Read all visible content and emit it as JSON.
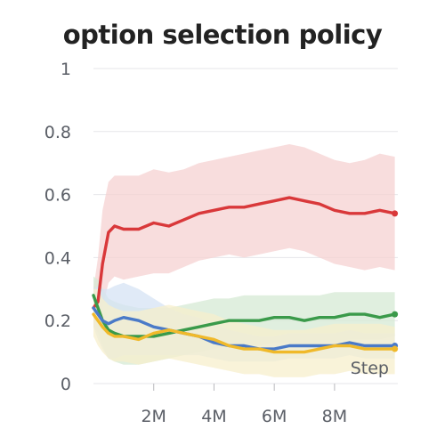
{
  "chart_data": {
    "type": "line",
    "title": "option selection policy",
    "xlabel": "Step",
    "ylabel": "",
    "xlim": [
      0,
      10100000
    ],
    "ylim": [
      0,
      1
    ],
    "x_ticks": [
      2000000,
      4000000,
      6000000,
      8000000
    ],
    "x_tick_labels": [
      "2M",
      "4M",
      "6M",
      "8M"
    ],
    "y_ticks": [
      0,
      0.2,
      0.4,
      0.6,
      0.8,
      1
    ],
    "y_tick_labels": [
      "0",
      "0.2",
      "0.4",
      "0.6",
      "0.8",
      "1"
    ],
    "grid": true,
    "legend": "none",
    "x": [
      0,
      150000,
      300000,
      500000,
      700000,
      1000000,
      1500000,
      2000000,
      2500000,
      3000000,
      3500000,
      4000000,
      4500000,
      5000000,
      5500000,
      6000000,
      6500000,
      7000000,
      7500000,
      8000000,
      8500000,
      9000000,
      9500000,
      10000000
    ],
    "series": [
      {
        "color": "#d9383a",
        "band_color": "#f6d2d2",
        "values": [
          0.24,
          0.26,
          0.38,
          0.48,
          0.5,
          0.49,
          0.49,
          0.51,
          0.5,
          0.52,
          0.54,
          0.55,
          0.56,
          0.56,
          0.57,
          0.58,
          0.59,
          0.58,
          0.57,
          0.55,
          0.54,
          0.54,
          0.55,
          0.54
        ],
        "band_upper": [
          0.3,
          0.4,
          0.55,
          0.64,
          0.66,
          0.66,
          0.66,
          0.68,
          0.67,
          0.68,
          0.7,
          0.71,
          0.72,
          0.73,
          0.74,
          0.75,
          0.76,
          0.75,
          0.73,
          0.71,
          0.7,
          0.71,
          0.73,
          0.72
        ],
        "band_lower": [
          0.18,
          0.16,
          0.24,
          0.32,
          0.34,
          0.33,
          0.34,
          0.35,
          0.35,
          0.37,
          0.39,
          0.4,
          0.41,
          0.4,
          0.41,
          0.42,
          0.43,
          0.42,
          0.4,
          0.38,
          0.37,
          0.36,
          0.37,
          0.36
        ]
      },
      {
        "color": "#3a9a4a",
        "band_color": "#d6ead4",
        "values": [
          0.28,
          0.24,
          0.2,
          0.17,
          0.16,
          0.15,
          0.15,
          0.15,
          0.16,
          0.17,
          0.18,
          0.19,
          0.2,
          0.2,
          0.2,
          0.21,
          0.21,
          0.2,
          0.21,
          0.21,
          0.22,
          0.22,
          0.21,
          0.22
        ],
        "band_upper": [
          0.34,
          0.33,
          0.3,
          0.27,
          0.26,
          0.25,
          0.24,
          0.24,
          0.24,
          0.25,
          0.26,
          0.27,
          0.27,
          0.28,
          0.28,
          0.28,
          0.28,
          0.28,
          0.28,
          0.29,
          0.29,
          0.29,
          0.29,
          0.29
        ],
        "band_lower": [
          0.22,
          0.16,
          0.12,
          0.08,
          0.07,
          0.06,
          0.06,
          0.07,
          0.08,
          0.09,
          0.1,
          0.11,
          0.12,
          0.12,
          0.12,
          0.13,
          0.13,
          0.12,
          0.13,
          0.13,
          0.14,
          0.14,
          0.14,
          0.15
        ]
      },
      {
        "color": "#4a7ac8",
        "band_color": "#d6e3f4",
        "values": [
          0.24,
          0.22,
          0.2,
          0.19,
          0.2,
          0.21,
          0.2,
          0.18,
          0.17,
          0.16,
          0.15,
          0.13,
          0.12,
          0.12,
          0.11,
          0.11,
          0.12,
          0.12,
          0.12,
          0.12,
          0.13,
          0.12,
          0.12,
          0.12
        ],
        "band_upper": [
          0.3,
          0.31,
          0.3,
          0.3,
          0.31,
          0.32,
          0.3,
          0.27,
          0.24,
          0.22,
          0.21,
          0.19,
          0.17,
          0.16,
          0.15,
          0.15,
          0.16,
          0.16,
          0.16,
          0.16,
          0.17,
          0.16,
          0.16,
          0.16
        ],
        "band_lower": [
          0.18,
          0.14,
          0.11,
          0.08,
          0.08,
          0.09,
          0.09,
          0.09,
          0.09,
          0.09,
          0.09,
          0.08,
          0.07,
          0.07,
          0.07,
          0.07,
          0.08,
          0.08,
          0.08,
          0.08,
          0.09,
          0.08,
          0.08,
          0.08
        ]
      },
      {
        "color": "#f0b92a",
        "band_color": "#f7efcc",
        "values": [
          0.22,
          0.2,
          0.18,
          0.16,
          0.15,
          0.15,
          0.14,
          0.16,
          0.17,
          0.16,
          0.15,
          0.14,
          0.12,
          0.11,
          0.11,
          0.1,
          0.1,
          0.1,
          0.11,
          0.12,
          0.12,
          0.11,
          0.11,
          0.11
        ],
        "band_upper": [
          0.3,
          0.3,
          0.27,
          0.25,
          0.24,
          0.23,
          0.23,
          0.24,
          0.25,
          0.24,
          0.23,
          0.22,
          0.2,
          0.19,
          0.18,
          0.17,
          0.17,
          0.17,
          0.18,
          0.19,
          0.19,
          0.19,
          0.19,
          0.18
        ],
        "band_lower": [
          0.15,
          0.12,
          0.1,
          0.08,
          0.07,
          0.07,
          0.06,
          0.07,
          0.08,
          0.07,
          0.06,
          0.05,
          0.04,
          0.03,
          0.03,
          0.02,
          0.02,
          0.02,
          0.03,
          0.03,
          0.04,
          0.03,
          0.03,
          0.03
        ]
      }
    ]
  }
}
